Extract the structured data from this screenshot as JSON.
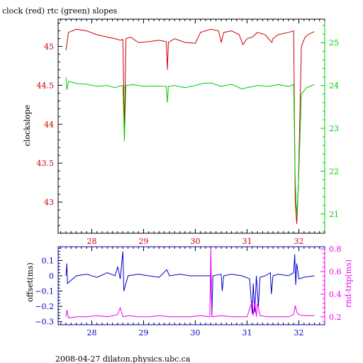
{
  "chart_data": [
    {
      "type": "line",
      "title": "clock (red) rtc (green) slopes",
      "ylabel_left": "clockslope",
      "xlim": [
        27.35,
        32.5
      ],
      "x_ticks": [
        28,
        29,
        30,
        31,
        32
      ],
      "x_tick_labels": [
        "28",
        "29",
        "30",
        "31",
        "32"
      ],
      "left_axis": {
        "color": "#cc0000",
        "ylim": [
          42.6,
          45.35
        ],
        "ticks": [
          43,
          43.5,
          44,
          44.5,
          45
        ],
        "tick_labels": [
          "43",
          "43.5",
          "44",
          "44.5",
          "45"
        ]
      },
      "right_axis": {
        "color": "#00cc00",
        "ylim": [
          20.55,
          25.55
        ],
        "ticks": [
          21,
          22,
          23,
          24,
          25
        ],
        "tick_labels": [
          "21",
          "22",
          "23",
          "24",
          "25"
        ]
      },
      "series": [
        {
          "color": "#cc0000",
          "axis": "left",
          "points": [
            [
              27.5,
              44.95
            ],
            [
              27.55,
              45.18
            ],
            [
              27.7,
              45.22
            ],
            [
              27.9,
              45.2
            ],
            [
              28.1,
              45.15
            ],
            [
              28.3,
              45.12
            ],
            [
              28.45,
              45.1
            ],
            [
              28.55,
              45.08
            ],
            [
              28.6,
              45.09
            ],
            [
              28.63,
              43.9
            ],
            [
              28.66,
              45.1
            ],
            [
              28.75,
              45.12
            ],
            [
              28.9,
              45.05
            ],
            [
              29.1,
              45.06
            ],
            [
              29.3,
              45.08
            ],
            [
              29.44,
              45.06
            ],
            [
              29.46,
              44.7
            ],
            [
              29.48,
              45.05
            ],
            [
              29.6,
              45.1
            ],
            [
              29.8,
              45.05
            ],
            [
              30.0,
              45.04
            ],
            [
              30.1,
              45.18
            ],
            [
              30.3,
              45.22
            ],
            [
              30.45,
              45.2
            ],
            [
              30.5,
              45.05
            ],
            [
              30.55,
              45.18
            ],
            [
              30.7,
              45.2
            ],
            [
              30.85,
              45.15
            ],
            [
              30.92,
              45.02
            ],
            [
              31.0,
              45.1
            ],
            [
              31.1,
              45.12
            ],
            [
              31.2,
              45.18
            ],
            [
              31.35,
              45.15
            ],
            [
              31.48,
              45.05
            ],
            [
              31.5,
              45.1
            ],
            [
              31.6,
              45.15
            ],
            [
              31.8,
              45.18
            ],
            [
              31.9,
              45.2
            ],
            [
              31.93,
              43.0
            ],
            [
              31.96,
              42.72
            ],
            [
              31.99,
              43.2
            ],
            [
              32.05,
              45.0
            ],
            [
              32.12,
              45.12
            ],
            [
              32.2,
              45.16
            ],
            [
              32.3,
              45.19
            ]
          ]
        },
        {
          "color": "#00cc00",
          "axis": "right",
          "points": [
            [
              27.5,
              24.2
            ],
            [
              27.52,
              23.9
            ],
            [
              27.55,
              24.1
            ],
            [
              27.7,
              24.05
            ],
            [
              27.9,
              24.03
            ],
            [
              28.1,
              23.98
            ],
            [
              28.3,
              24.0
            ],
            [
              28.45,
              23.95
            ],
            [
              28.55,
              23.99
            ],
            [
              28.6,
              24.0
            ],
            [
              28.63,
              22.7
            ],
            [
              28.66,
              24.0
            ],
            [
              28.8,
              24.02
            ],
            [
              29.0,
              23.98
            ],
            [
              29.2,
              23.99
            ],
            [
              29.44,
              23.98
            ],
            [
              29.46,
              23.6
            ],
            [
              29.48,
              23.98
            ],
            [
              29.6,
              24.0
            ],
            [
              29.8,
              23.95
            ],
            [
              30.0,
              24.0
            ],
            [
              30.15,
              24.05
            ],
            [
              30.3,
              24.06
            ],
            [
              30.5,
              23.98
            ],
            [
              30.7,
              24.03
            ],
            [
              30.9,
              23.92
            ],
            [
              31.0,
              23.95
            ],
            [
              31.2,
              24.0
            ],
            [
              31.4,
              23.98
            ],
            [
              31.6,
              24.02
            ],
            [
              31.8,
              23.98
            ],
            [
              31.9,
              24.02
            ],
            [
              31.93,
              21.8
            ],
            [
              31.96,
              20.95
            ],
            [
              31.99,
              21.6
            ],
            [
              32.05,
              23.8
            ],
            [
              32.15,
              23.95
            ],
            [
              32.3,
              24.02
            ]
          ]
        }
      ]
    },
    {
      "type": "line",
      "ylabel_left": "offset(ms)",
      "ylabel_right": "rnd-trip(ms)",
      "xlim": [
        27.35,
        32.5
      ],
      "x_ticks": [
        28,
        29,
        30,
        31,
        32
      ],
      "x_tick_labels": [
        "28",
        "29",
        "30",
        "31",
        "32"
      ],
      "left_axis": {
        "color": "#0000cc",
        "ylim": [
          -0.32,
          0.19
        ],
        "ticks": [
          0.1,
          0,
          -0.1,
          -0.2,
          -0.3
        ],
        "tick_labels": [
          "0.1",
          "0",
          "−0.1",
          "−0.2",
          "−0.3"
        ]
      },
      "right_axis": {
        "color": "#ee00ee",
        "ylim": [
          0.13,
          0.82
        ],
        "ticks": [
          0.2,
          0.4,
          0.6,
          0.8
        ],
        "tick_labels": [
          "0.2",
          "0.4",
          "0.6",
          "0.8"
        ]
      },
      "series": [
        {
          "color": "#0000cc",
          "axis": "left",
          "points": [
            [
              27.5,
              0.0
            ],
            [
              27.52,
              0.08
            ],
            [
              27.53,
              -0.05
            ],
            [
              27.7,
              0.0
            ],
            [
              27.9,
              0.01
            ],
            [
              28.1,
              -0.01
            ],
            [
              28.3,
              0.02
            ],
            [
              28.45,
              0.0
            ],
            [
              28.5,
              0.06
            ],
            [
              28.55,
              -0.02
            ],
            [
              28.6,
              0.16
            ],
            [
              28.62,
              -0.1
            ],
            [
              28.7,
              0.0
            ],
            [
              28.9,
              0.01
            ],
            [
              29.1,
              0.0
            ],
            [
              29.3,
              -0.01
            ],
            [
              29.45,
              0.04
            ],
            [
              29.5,
              0.0
            ],
            [
              29.7,
              0.01
            ],
            [
              29.9,
              0.0
            ],
            [
              30.1,
              0.0
            ],
            [
              30.3,
              0.0
            ],
            [
              30.32,
              -0.26
            ],
            [
              30.34,
              0.0
            ],
            [
              30.5,
              0.01
            ],
            [
              30.52,
              -0.1
            ],
            [
              30.55,
              0.0
            ],
            [
              30.7,
              0.01
            ],
            [
              30.9,
              0.0
            ],
            [
              31.05,
              -0.02
            ],
            [
              31.1,
              -0.25
            ],
            [
              31.12,
              -0.05
            ],
            [
              31.15,
              -0.24
            ],
            [
              31.18,
              0.0
            ],
            [
              31.22,
              -0.2
            ],
            [
              31.25,
              -0.01
            ],
            [
              31.35,
              0.0
            ],
            [
              31.45,
              0.02
            ],
            [
              31.47,
              -0.12
            ],
            [
              31.5,
              0.0
            ],
            [
              31.6,
              0.01
            ],
            [
              31.8,
              0.0
            ],
            [
              31.9,
              0.02
            ],
            [
              31.92,
              0.14
            ],
            [
              31.94,
              -0.06
            ],
            [
              31.96,
              0.08
            ],
            [
              32.0,
              -0.02
            ],
            [
              32.1,
              -0.01
            ],
            [
              32.3,
              0.0
            ]
          ]
        },
        {
          "color": "#ee00ee",
          "axis": "right",
          "points": [
            [
              27.5,
              0.2
            ],
            [
              27.52,
              0.26
            ],
            [
              27.55,
              0.19
            ],
            [
              27.7,
              0.2
            ],
            [
              27.9,
              0.2
            ],
            [
              28.1,
              0.21
            ],
            [
              28.3,
              0.2
            ],
            [
              28.5,
              0.22
            ],
            [
              28.55,
              0.28
            ],
            [
              28.6,
              0.2
            ],
            [
              28.7,
              0.21
            ],
            [
              28.9,
              0.2
            ],
            [
              29.1,
              0.2
            ],
            [
              29.3,
              0.21
            ],
            [
              29.5,
              0.2
            ],
            [
              29.7,
              0.2
            ],
            [
              29.9,
              0.2
            ],
            [
              30.1,
              0.21
            ],
            [
              30.28,
              0.2
            ],
            [
              30.3,
              0.8
            ],
            [
              30.32,
              0.2
            ],
            [
              30.5,
              0.21
            ],
            [
              30.7,
              0.2
            ],
            [
              30.9,
              0.2
            ],
            [
              31.0,
              0.2
            ],
            [
              31.1,
              0.34
            ],
            [
              31.12,
              0.21
            ],
            [
              31.15,
              0.33
            ],
            [
              31.18,
              0.2
            ],
            [
              31.2,
              0.32
            ],
            [
              31.25,
              0.21
            ],
            [
              31.4,
              0.2
            ],
            [
              31.6,
              0.2
            ],
            [
              31.8,
              0.2
            ],
            [
              31.9,
              0.22
            ],
            [
              31.93,
              0.3
            ],
            [
              31.96,
              0.24
            ],
            [
              32.0,
              0.22
            ],
            [
              32.1,
              0.21
            ],
            [
              32.3,
              0.21
            ]
          ]
        }
      ]
    }
  ],
  "footer": "2008-04-27  dilaton.physics.ubc.ca"
}
